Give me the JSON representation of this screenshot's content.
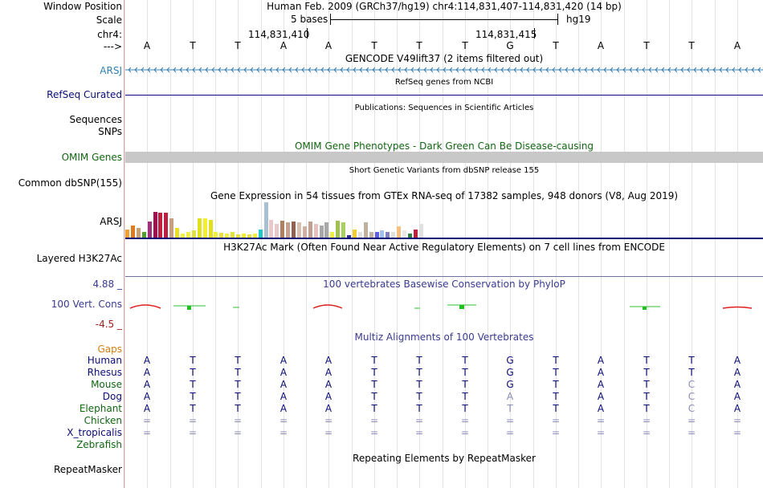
{
  "header": {
    "window_position_label": "Window Position",
    "window_position_text": "Human Feb. 2009 (GRCh37/hg19)   chr4:114,831,407-114,831,420 (14 bp)",
    "scale_label": "Scale",
    "scale_text": "5 bases",
    "assembly": "hg19",
    "chrom_label": "chr4:",
    "coord1": "114,831,410",
    "coord2": "114,831,415",
    "strand_label": "--->"
  },
  "sequence": [
    "A",
    "T",
    "T",
    "A",
    "A",
    "T",
    "T",
    "T",
    "G",
    "T",
    "A",
    "T",
    "T",
    "A"
  ],
  "tracks": {
    "gencode": {
      "label": "ARSJ",
      "title": "GENCODE V49lift37 (2 items filtered out)"
    },
    "refseq": {
      "label": "RefSeq Curated",
      "title": "RefSeq genes from NCBI"
    },
    "publications": {
      "title": "Publications: Sequences in Scientific Articles"
    },
    "sequences": {
      "label": "Sequences"
    },
    "snps": {
      "label": "SNPs"
    },
    "omim": {
      "label": "OMIM Genes",
      "title": "OMIM Gene Phenotypes - Dark Green Can Be Disease-causing"
    },
    "dbsnp": {
      "label": "Common dbSNP(155)",
      "title": "Short Genetic Variants from dbSNP release 155"
    },
    "gtex": {
      "label": "ARSJ",
      "title": "Gene Expression in 54 tissues from GTEx RNA-seq of 17382 samples, 948 donors (V8, Aug 2019)"
    },
    "h3k27ac": {
      "label": "Layered H3K27Ac",
      "title": "H3K27Ac Mark (Often Found Near Active Regulatory Elements) on 7 cell lines from ENCODE"
    },
    "phylop": {
      "label": "100 Vert. Cons",
      "max": "4.88 _",
      "min": "-4.5 _",
      "title": "100 vertebrates Basewise Conservation by PhyloP"
    },
    "multiz": {
      "title": "Multiz Alignments of 100 Vertebrates",
      "gaps_label": "Gaps"
    },
    "repeatmasker": {
      "label": "RepeatMasker",
      "title": "Repeating Elements by RepeatMasker"
    }
  },
  "colors": {
    "gencode_label": "#3380b0",
    "refseq": "#0c0c78",
    "omim": "#116611",
    "phylop_title": "#3a3a90",
    "gaps": "#d08010"
  },
  "species": [
    {
      "name": "Human",
      "color": "#0c0c78",
      "bases": [
        "A",
        "T",
        "T",
        "A",
        "A",
        "T",
        "T",
        "T",
        "G",
        "T",
        "A",
        "T",
        "T",
        "A"
      ]
    },
    {
      "name": "Rhesus",
      "color": "#0c0c78",
      "bases": [
        "A",
        "T",
        "T",
        "A",
        "A",
        "T",
        "T",
        "T",
        "G",
        "T",
        "A",
        "T",
        "T",
        "A"
      ]
    },
    {
      "name": "Mouse",
      "color": "#116611",
      "bases": [
        "A",
        "T",
        "T",
        "A",
        "A",
        "T",
        "T",
        "T",
        "G",
        "T",
        "A",
        "T",
        "C",
        "A"
      ]
    },
    {
      "name": "Dog",
      "color": "#0c0c78",
      "bases": [
        "A",
        "T",
        "T",
        "A",
        "A",
        "T",
        "T",
        "T",
        "A",
        "T",
        "A",
        "T",
        "C",
        "A"
      ]
    },
    {
      "name": "Elephant",
      "color": "#116611",
      "bases": [
        "A",
        "T",
        "T",
        "A",
        "A",
        "T",
        "T",
        "T",
        "T",
        "T",
        "A",
        "T",
        "C",
        "A"
      ]
    },
    {
      "name": "Chicken",
      "color": "#116611",
      "bases": [
        "=",
        "=",
        "=",
        "=",
        "=",
        "=",
        "=",
        "=",
        "=",
        "=",
        "=",
        "=",
        "=",
        "="
      ]
    },
    {
      "name": "X_tropicalis",
      "color": "#0c0c78",
      "bases": [
        "=",
        "=",
        "=",
        "=",
        "=",
        "=",
        "=",
        "=",
        "=",
        "=",
        "=",
        "=",
        "=",
        "="
      ]
    },
    {
      "name": "Zebrafish",
      "color": "#116611",
      "bases": []
    }
  ],
  "gtex_values": [
    0.3,
    0.45,
    0.35,
    0.2,
    0.6,
    0.95,
    0.9,
    0.9,
    0.7,
    0.35,
    0.15,
    0.2,
    0.25,
    0.7,
    0.7,
    0.65,
    0.2,
    0.18,
    0.15,
    0.2,
    0.12,
    0.15,
    0.12,
    0.15,
    0.3,
    1.3,
    0.65,
    0.5,
    0.62,
    0.55,
    0.6,
    0.55,
    0.4,
    0.58,
    0.5,
    0.45,
    0.55,
    0.2,
    0.62,
    0.55,
    0.1,
    0.3,
    0.2,
    0.55,
    0.2,
    0.2,
    0.25,
    0.2,
    0.2,
    0.4,
    0.25,
    0.15,
    0.3,
    0.5
  ],
  "gtex_colors": [
    "#f0a030",
    "#e07a20",
    "#c8a070",
    "#50a030",
    "#a0307a",
    "#a01050",
    "#c02040",
    "#c02040",
    "#c8a080",
    "#e8e020",
    "#f0f040",
    "#f0f040",
    "#e0e040",
    "#e0e020",
    "#f0f030",
    "#e0e020",
    "#f0f040",
    "#e8e040",
    "#f0f040",
    "#e0e040",
    "#e8e040",
    "#f0f030",
    "#e8e040",
    "#f0f040",
    "#20c8c8",
    "#a8c0d0",
    "#e8c8c8",
    "#e8c8c8",
    "#b08060",
    "#c8a090",
    "#906050",
    "#d8c0b0",
    "#d0b0a0",
    "#c0a090",
    "#e8c0c0",
    "#a8a8a8",
    "#a8a8a8",
    "#f0f040",
    "#a0c050",
    "#a8d060",
    "#303090",
    "#f0d030",
    "#e0e0e0",
    "#c0b0a0",
    "#c0b0a0",
    "#6060e0",
    "#a0c0f0",
    "#8080c0",
    "#e0e0e0",
    "#f8c080",
    "#e8e8e8",
    "#308040",
    "#c02040",
    "#e0e0e0"
  ]
}
